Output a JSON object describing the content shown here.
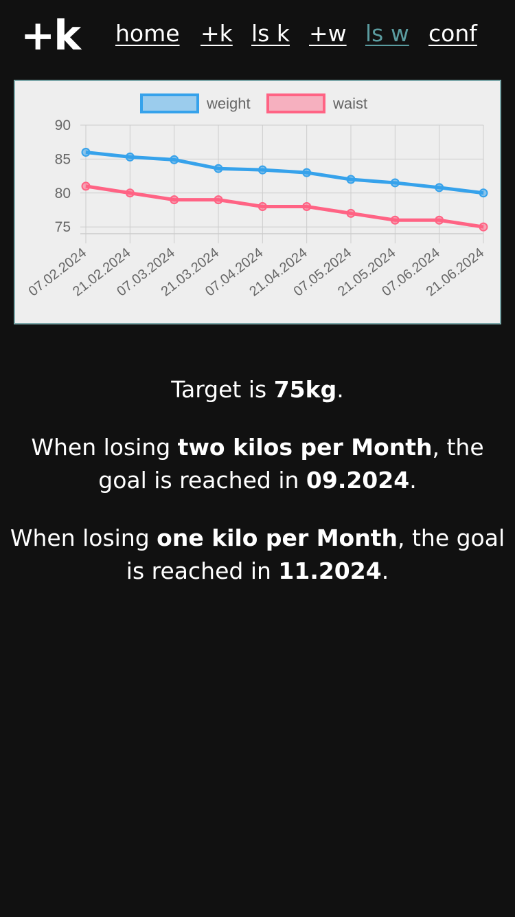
{
  "nav": {
    "logo": "+k",
    "links": [
      {
        "label": "home",
        "active": false
      },
      {
        "label": "+k",
        "active": false
      },
      {
        "label": "ls k",
        "active": false
      },
      {
        "label": "+w",
        "active": false
      },
      {
        "label": "ls w",
        "active": true
      },
      {
        "label": "conf",
        "active": false
      }
    ],
    "active_color": "#5b9ca0"
  },
  "chart_data": {
    "type": "line",
    "categories": [
      "07.02.2024",
      "21.02.2024",
      "07.03.2024",
      "21.03.2024",
      "07.04.2024",
      "21.04.2024",
      "07.05.2024",
      "21.05.2024",
      "07.06.2024",
      "21.06.2024"
    ],
    "series": [
      {
        "name": "weight",
        "color": "#36a2eb",
        "values": [
          86,
          85.3,
          84.9,
          83.6,
          83.4,
          83,
          82,
          81.5,
          80.8,
          80
        ]
      },
      {
        "name": "waist",
        "color": "#ff6384",
        "values": [
          81,
          80,
          79,
          79,
          78,
          78,
          77,
          76,
          76,
          75
        ]
      }
    ],
    "yticks": [
      90,
      85,
      80,
      75
    ],
    "ylim": [
      74,
      90
    ],
    "grid": true,
    "legend": "top"
  },
  "info": {
    "target_pre": "Target is ",
    "target_value": "75kg",
    "target_post": ".",
    "two": {
      "pre": "When losing ",
      "rate": "two kilos per Month",
      "mid": ", the goal is reached in ",
      "date": "09.2024",
      "post": "."
    },
    "one": {
      "pre": "When losing ",
      "rate": "one kilo per Month",
      "mid": ", the goal is reached in ",
      "date": "11.2024",
      "post": "."
    }
  }
}
